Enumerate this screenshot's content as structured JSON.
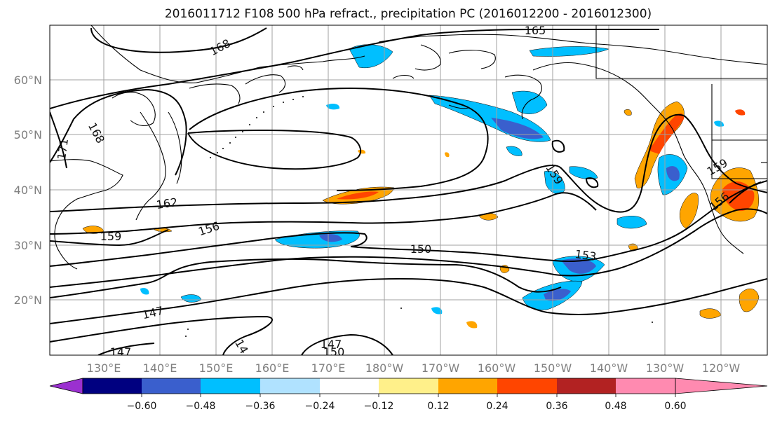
{
  "title": "2016011712 F108 500 hPa refract., precipitation PC (2016012200 - 2016012300)",
  "map": {
    "lat_labels": [
      "60°N",
      "50°N",
      "40°N",
      "30°N",
      "20°N"
    ],
    "lon_labels": [
      "130°E",
      "140°E",
      "150°E",
      "160°E",
      "170°E",
      "180°W",
      "170°W",
      "160°W",
      "150°W",
      "140°W",
      "130°W",
      "120°W"
    ],
    "contour_labels": [
      "165",
      "168",
      "168",
      "171",
      "162",
      "159",
      "156",
      "159",
      "150",
      "153",
      "147",
      "147",
      "147",
      "150",
      "14",
      "159",
      "156"
    ]
  },
  "colorbar": {
    "tick_labels": [
      "−0.60",
      "−0.48",
      "−0.36",
      "−0.24",
      "−0.12",
      "0.12",
      "0.24",
      "0.36",
      "0.48",
      "0.60"
    ],
    "colors": [
      "#9b30d0",
      "#000080",
      "#3a5fcd",
      "#00bfff",
      "#b0e2ff",
      "#ffffff",
      "#fff08a",
      "#ffa500",
      "#ff4500",
      "#b22222",
      "#ff8ab0"
    ]
  }
}
